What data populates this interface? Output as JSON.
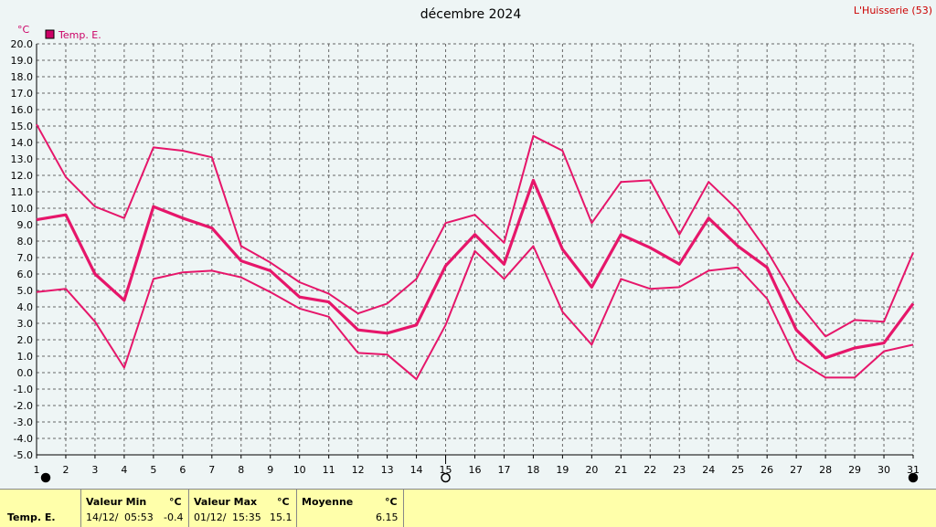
{
  "chart_data": {
    "type": "line",
    "title": "décembre 2024",
    "location": "L'Huisserie (53)",
    "unit": "°C",
    "legend": "Temp. E.",
    "ylim": [
      -5,
      20
    ],
    "ytick_step": 1,
    "x": [
      1,
      2,
      3,
      4,
      5,
      6,
      7,
      8,
      9,
      10,
      11,
      12,
      13,
      14,
      15,
      16,
      17,
      18,
      19,
      20,
      21,
      22,
      23,
      24,
      25,
      26,
      27,
      28,
      29,
      30,
      31
    ],
    "series": [
      {
        "line": "max",
        "values": [
          15.1,
          11.9,
          10.1,
          9.4,
          13.7,
          13.5,
          13.1,
          7.7,
          6.7,
          5.5,
          4.8,
          3.6,
          4.2,
          5.7,
          9.1,
          9.6,
          7.9,
          14.4,
          13.5,
          9.1,
          11.6,
          11.7,
          8.4,
          11.6,
          9.9,
          7.4,
          4.4,
          2.2,
          3.2,
          3.1,
          7.3
        ]
      },
      {
        "line": "mean",
        "values": [
          9.3,
          9.6,
          6.0,
          4.4,
          10.1,
          9.4,
          8.8,
          6.8,
          6.2,
          4.6,
          4.3,
          2.6,
          2.4,
          2.9,
          6.5,
          8.4,
          6.6,
          11.7,
          7.5,
          5.2,
          8.4,
          7.6,
          6.6,
          9.4,
          7.7,
          6.4,
          2.6,
          0.9,
          1.5,
          1.8,
          4.2
        ]
      },
      {
        "line": "min",
        "values": [
          4.9,
          5.1,
          3.1,
          0.3,
          5.7,
          6.1,
          6.2,
          5.8,
          4.9,
          3.9,
          3.4,
          1.2,
          1.1,
          -0.4,
          2.9,
          7.4,
          5.7,
          7.7,
          3.7,
          1.7,
          5.7,
          5.1,
          5.2,
          6.2,
          6.4,
          4.5,
          0.8,
          -0.3,
          -0.3,
          1.3,
          1.7
        ]
      }
    ],
    "color": "#e6166a",
    "moon_markers": [
      {
        "day": 1,
        "phase": "new"
      },
      {
        "day": 15,
        "phase": "full"
      },
      {
        "day": 31,
        "phase": "new"
      }
    ]
  },
  "footer": {
    "label": "Temp. E.",
    "min_header": "Valeur Min",
    "min_unit": "°C",
    "min_date": "14/12/",
    "min_time": "05:53",
    "min_value": "-0.4",
    "max_header": "Valeur Max",
    "max_unit": "°C",
    "max_date": "01/12/",
    "max_time": "15:35",
    "max_value": "15.1",
    "mean_header": "Moyenne",
    "mean_unit": "°C",
    "mean_value": "6.15"
  }
}
